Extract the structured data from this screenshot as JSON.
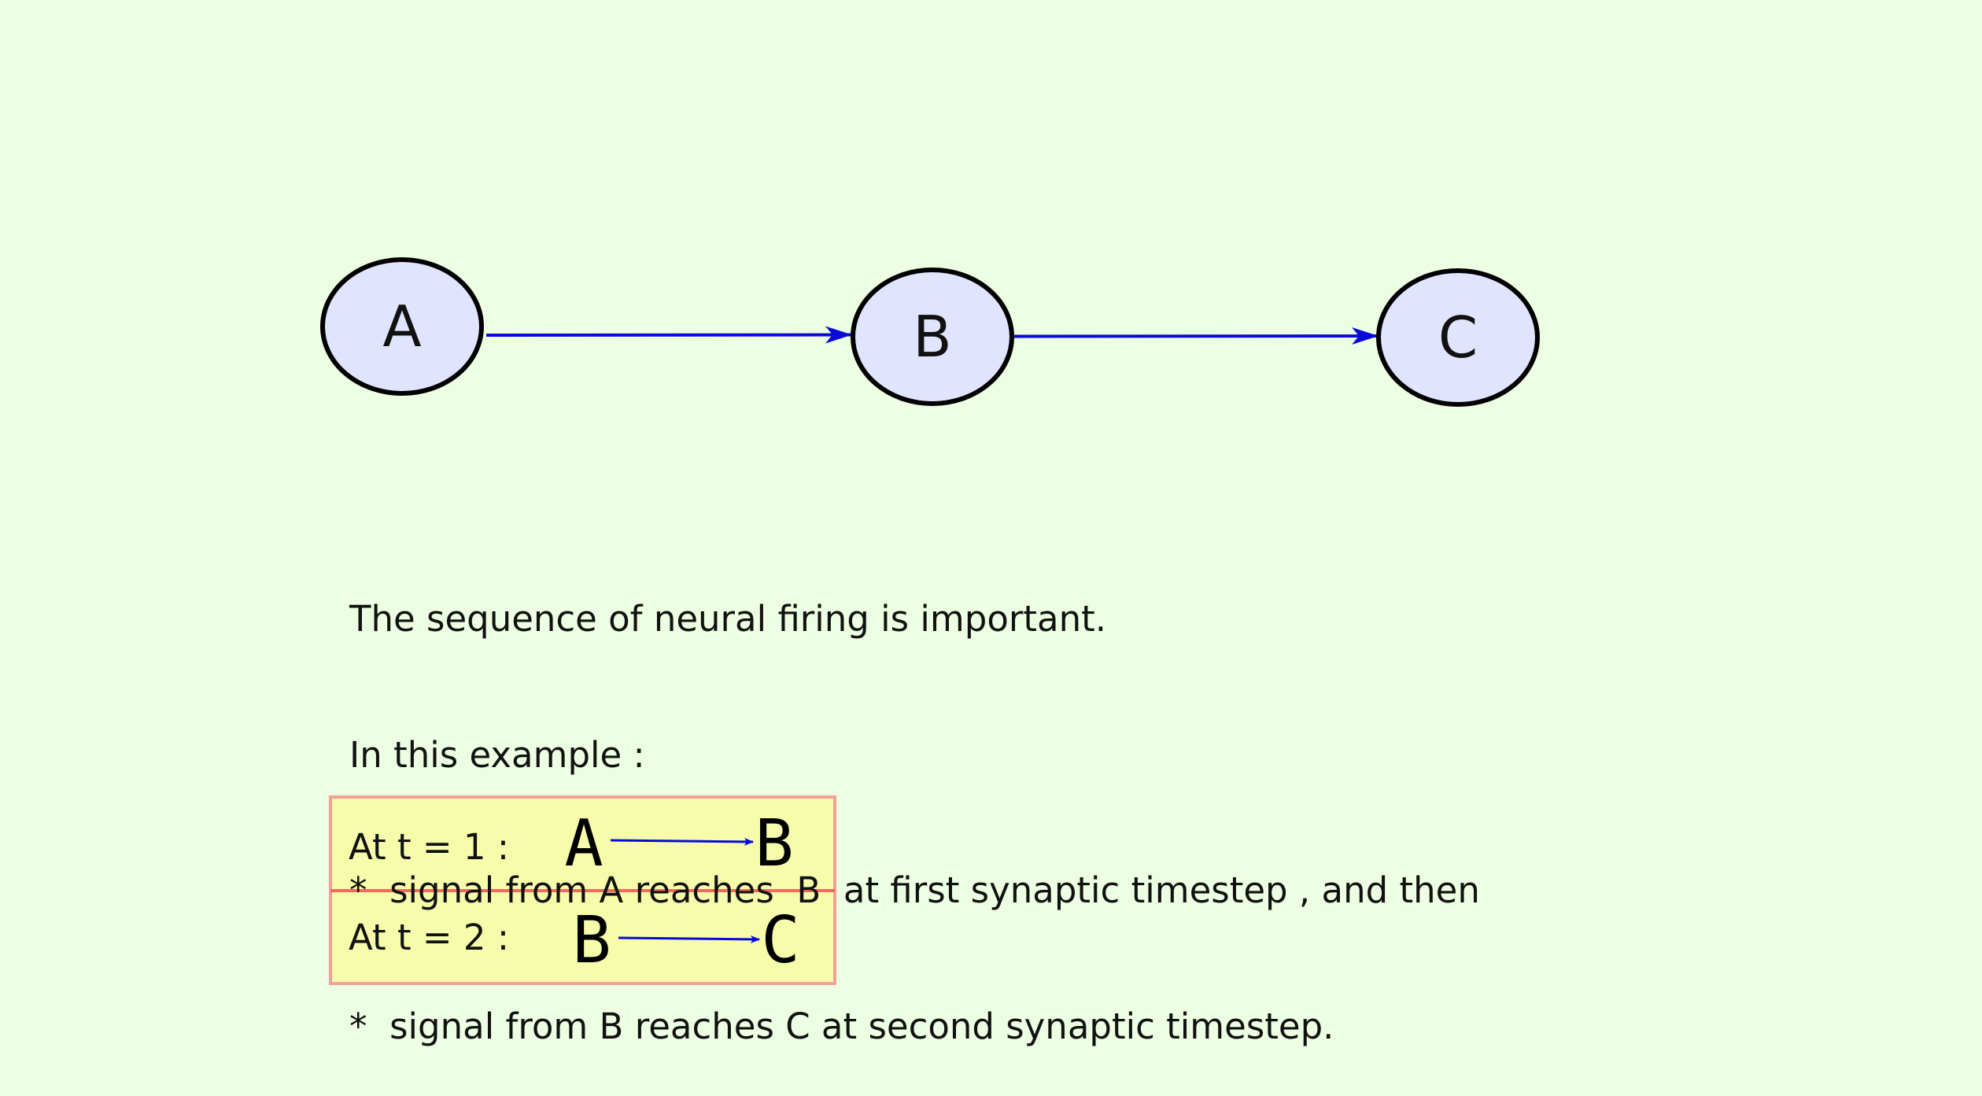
{
  "colors": {
    "background": "#edffe2",
    "node_fill": "#e0e4ff",
    "node_stroke": "#000000",
    "arrow": "#0a0ad8",
    "table_fill": "#f6fcaa",
    "table_border": "#f4a09a",
    "table_divider": "#f26a5e"
  },
  "nodes": [
    {
      "id": "A",
      "label": "A"
    },
    {
      "id": "B",
      "label": "B"
    },
    {
      "id": "C",
      "label": "C"
    }
  ],
  "edges": [
    {
      "from": "A",
      "to": "B"
    },
    {
      "from": "B",
      "to": "C"
    }
  ],
  "caption": {
    "lines": [
      "The sequence of neural firing is important.",
      "In this example :",
      "*  signal from A reaches  B  at first synaptic timestep , and then",
      "*  signal from B reaches C at second synaptic timestep."
    ]
  },
  "timesteps": [
    {
      "label": "At t = 1 :",
      "from": "A",
      "to": "B"
    },
    {
      "label": "At t = 2 :",
      "from": "B",
      "to": "C"
    }
  ]
}
